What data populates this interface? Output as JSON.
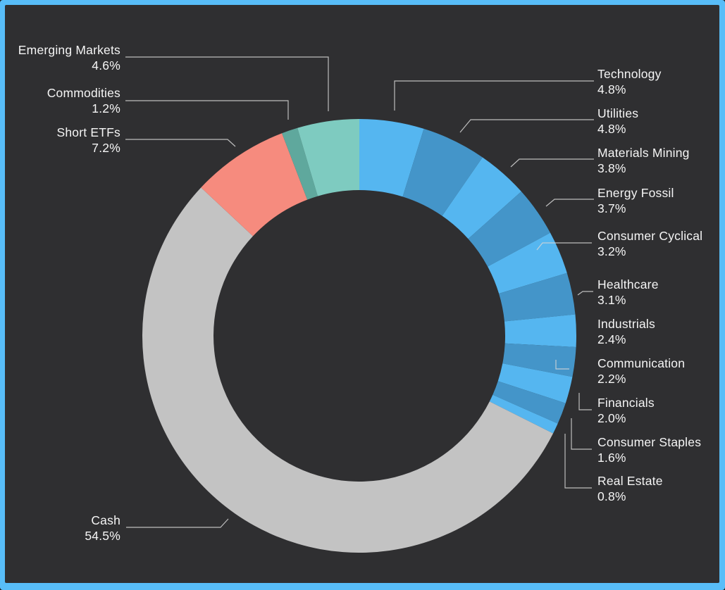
{
  "chart_data": {
    "type": "pie",
    "donut": true,
    "title": "",
    "start_angle_deg": 0,
    "direction": "clockwise",
    "legend_position": "callout-labels",
    "total_pct": 99.9,
    "segments": [
      {
        "label": "Technology",
        "value": 4.8,
        "pct": "4.8%",
        "color": "#55b6f0"
      },
      {
        "label": "Utilities",
        "value": 4.8,
        "pct": "4.8%",
        "color": "#4495c9"
      },
      {
        "label": "Materials Mining",
        "value": 3.8,
        "pct": "3.8%",
        "color": "#55b6f0"
      },
      {
        "label": "Energy Fossil",
        "value": 3.7,
        "pct": "3.7%",
        "color": "#4495c9"
      },
      {
        "label": "Consumer Cyclical",
        "value": 3.2,
        "pct": "3.2%",
        "color": "#55b6f0"
      },
      {
        "label": "Healthcare",
        "value": 3.1,
        "pct": "3.1%",
        "color": "#4495c9"
      },
      {
        "label": "Industrials",
        "value": 2.4,
        "pct": "2.4%",
        "color": "#55b6f0"
      },
      {
        "label": "Communication",
        "value": 2.2,
        "pct": "2.2%",
        "color": "#4495c9"
      },
      {
        "label": "Financials",
        "value": 2.0,
        "pct": "2.0%",
        "color": "#55b6f0"
      },
      {
        "label": "Consumer Staples",
        "value": 1.6,
        "pct": "1.6%",
        "color": "#4495c9"
      },
      {
        "label": "Real Estate",
        "value": 0.8,
        "pct": "0.8%",
        "color": "#55b6f0"
      },
      {
        "label": "Cash",
        "value": 54.5,
        "pct": "54.5%",
        "color": "#c3c3c3"
      },
      {
        "label": "Short ETFs",
        "value": 7.2,
        "pct": "7.2%",
        "color": "#f68b7e"
      },
      {
        "label": "Commodities",
        "value": 1.2,
        "pct": "1.2%",
        "color": "#5fa89d"
      },
      {
        "label": "Emerging Markets",
        "value": 4.6,
        "pct": "4.6%",
        "color": "#7ecbc0"
      }
    ]
  },
  "colors": {
    "frame_border": "#58bdf8",
    "background": "#2f2f31",
    "leader_line": "#d6d6d6",
    "label_text": "#f5f5f5"
  }
}
